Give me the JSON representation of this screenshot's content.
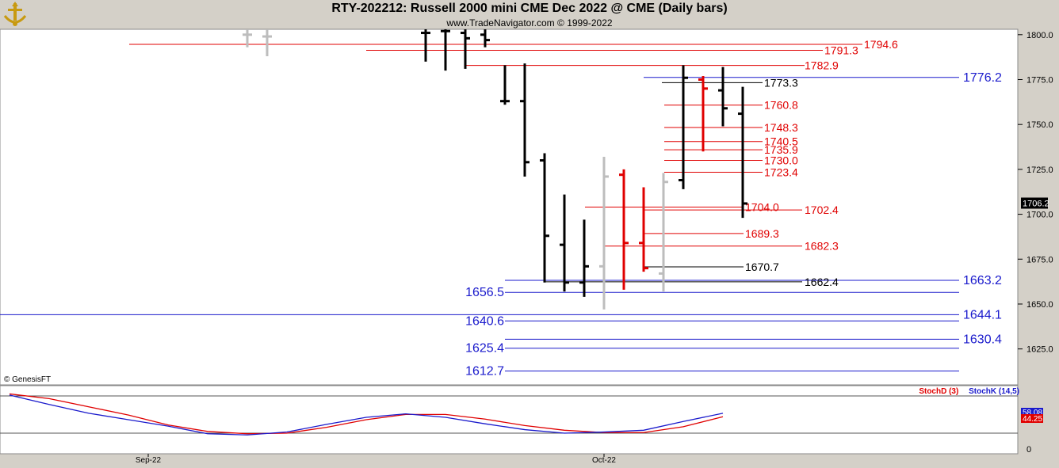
{
  "header": {
    "title": "RTY-202212:  Russell 2000 mini CME Dec 2022 @ CME  (Daily bars)",
    "subtitle": "www.TradeNavigator.com © 1999-2022"
  },
  "copyright": "© GenesisFT",
  "colors": {
    "red": "#e00000",
    "blue": "#1a1acc",
    "black": "#000000",
    "gray": "#bdbdbd",
    "panel_bg": "#ffffff",
    "frame_bg": "#d4d0c8"
  },
  "chart_data": [
    {
      "type": "ohlc",
      "title": "RTY-202212:  Russell 2000 mini CME Dec 2022 @ CME  (Daily bars)",
      "ylim": [
        1605,
        1803
      ],
      "y_ticks": [
        "1800.0",
        "1775.0",
        "1750.0",
        "1725.0",
        "1700.0",
        "1675.0",
        "1650.0",
        "1625.0"
      ],
      "x_ticks": [
        {
          "label": "Sep-22",
          "bar": 8
        },
        {
          "label": "Oct-22",
          "bar": 31
        }
      ],
      "last_price": "1706.2",
      "bars": [
        {
          "i": 13,
          "h": 1803,
          "l": 1793,
          "o": 1800,
          "c": 1800,
          "color": "gray"
        },
        {
          "i": 14,
          "h": 1803,
          "l": 1788,
          "o": 1799,
          "c": 1799,
          "color": "gray"
        },
        {
          "i": 22,
          "h": 1803,
          "l": 1785,
          "o": 1801,
          "c": 1801,
          "color": "black"
        },
        {
          "i": 23,
          "h": 1803,
          "l": 1780,
          "o": 1802,
          "c": 1802,
          "color": "black"
        },
        {
          "i": 24,
          "h": 1803,
          "l": 1781,
          "o": 1801,
          "c": 1798,
          "color": "black"
        },
        {
          "i": 25,
          "h": 1803,
          "l": 1793,
          "o": 1800,
          "c": 1797,
          "color": "black"
        },
        {
          "i": 26,
          "h": 1783,
          "l": 1761,
          "o": 1763,
          "c": 1763,
          "color": "black"
        },
        {
          "i": 27,
          "h": 1784,
          "l": 1721,
          "o": 1763,
          "c": 1729,
          "color": "black"
        },
        {
          "i": 28,
          "h": 1734,
          "l": 1662,
          "o": 1730,
          "c": 1688,
          "color": "black"
        },
        {
          "i": 29,
          "h": 1711,
          "l": 1657,
          "o": 1683,
          "c": 1662,
          "color": "black"
        },
        {
          "i": 30,
          "h": 1697,
          "l": 1654,
          "o": 1662,
          "c": 1671,
          "color": "black"
        },
        {
          "i": 31,
          "h": 1732,
          "l": 1647,
          "o": 1671,
          "c": 1721,
          "color": "gray"
        },
        {
          "i": 32,
          "h": 1725,
          "l": 1658,
          "o": 1722,
          "c": 1684,
          "color": "red"
        },
        {
          "i": 33,
          "h": 1715,
          "l": 1668,
          "o": 1684,
          "c": 1670,
          "color": "red"
        },
        {
          "i": 34,
          "h": 1723,
          "l": 1657,
          "o": 1667,
          "c": 1718,
          "color": "gray"
        },
        {
          "i": 35,
          "h": 1783,
          "l": 1714,
          "o": 1719,
          "c": 1776,
          "color": "black"
        },
        {
          "i": 36,
          "h": 1777,
          "l": 1735,
          "o": 1775,
          "c": 1770,
          "color": "red"
        },
        {
          "i": 37,
          "h": 1782,
          "l": 1749,
          "o": 1769,
          "c": 1759,
          "color": "black"
        },
        {
          "i": 38,
          "h": 1771,
          "l": 1698,
          "o": 1756,
          "c": 1706,
          "color": "black"
        }
      ],
      "levels": [
        {
          "value": 1794.6,
          "label": "1794.6",
          "color": "red"
        },
        {
          "value": 1791.3,
          "label": "1791.3",
          "color": "red"
        },
        {
          "value": 1782.9,
          "label": "1782.9",
          "color": "red"
        },
        {
          "value": 1776.2,
          "label": "1776.2",
          "color": "blue"
        },
        {
          "value": 1773.3,
          "label": "1773.3",
          "color": "black"
        },
        {
          "value": 1760.8,
          "label": "1760.8",
          "color": "red"
        },
        {
          "value": 1748.3,
          "label": "1748.3",
          "color": "red"
        },
        {
          "value": 1740.5,
          "label": "1740.5",
          "color": "red"
        },
        {
          "value": 1735.9,
          "label": "1735.9",
          "color": "red"
        },
        {
          "value": 1730.0,
          "label": "1730.0",
          "color": "red"
        },
        {
          "value": 1723.4,
          "label": "1723.4",
          "color": "red"
        },
        {
          "value": 1704.0,
          "label": "1704.0",
          "color": "red"
        },
        {
          "value": 1702.4,
          "label": "1702.4",
          "color": "red"
        },
        {
          "value": 1689.3,
          "label": "1689.3",
          "color": "red"
        },
        {
          "value": 1682.3,
          "label": "1682.3",
          "color": "red"
        },
        {
          "value": 1670.7,
          "label": "1670.7",
          "color": "black"
        },
        {
          "value": 1663.2,
          "label": "1663.2",
          "color": "blue"
        },
        {
          "value": 1662.4,
          "label": "1662.4",
          "color": "black"
        },
        {
          "value": 1656.5,
          "label": "1656.5",
          "color": "blue"
        },
        {
          "value": 1644.1,
          "label": "1644.1",
          "color": "blue"
        },
        {
          "value": 1640.6,
          "label": "1640.6",
          "color": "blue"
        },
        {
          "value": 1630.4,
          "label": "1630.4",
          "color": "blue"
        },
        {
          "value": 1625.4,
          "label": "1625.4",
          "color": "blue"
        },
        {
          "value": 1612.7,
          "label": "1612.7",
          "color": "blue"
        }
      ]
    },
    {
      "type": "line",
      "ylim": [
        0,
        100
      ],
      "y_ticks": [
        "0"
      ],
      "value_labels": [
        "58.08",
        "44.25"
      ],
      "legend": [
        "StochD (3)",
        "StochK (14,5)"
      ],
      "series": [
        {
          "name": "StochD (3)",
          "color": "red",
          "x": [
            1,
            3,
            5,
            7,
            9,
            11,
            13,
            15,
            17,
            19,
            21,
            23,
            25,
            27,
            29,
            31,
            33,
            35,
            37
          ],
          "values": [
            94,
            86,
            72,
            58,
            41,
            30,
            26,
            27,
            37,
            50,
            59,
            59,
            51,
            40,
            32,
            28,
            28,
            38,
            55
          ]
        },
        {
          "name": "StochK (14,5)",
          "color": "blue",
          "x": [
            1,
            3,
            5,
            7,
            9,
            11,
            13,
            15,
            17,
            19,
            21,
            23,
            25,
            27,
            29,
            31,
            33,
            35,
            37
          ],
          "values": [
            92,
            76,
            61,
            50,
            39,
            26,
            24,
            29,
            42,
            54,
            60,
            54,
            43,
            33,
            27,
            29,
            32,
            47,
            61
          ]
        }
      ]
    }
  ]
}
